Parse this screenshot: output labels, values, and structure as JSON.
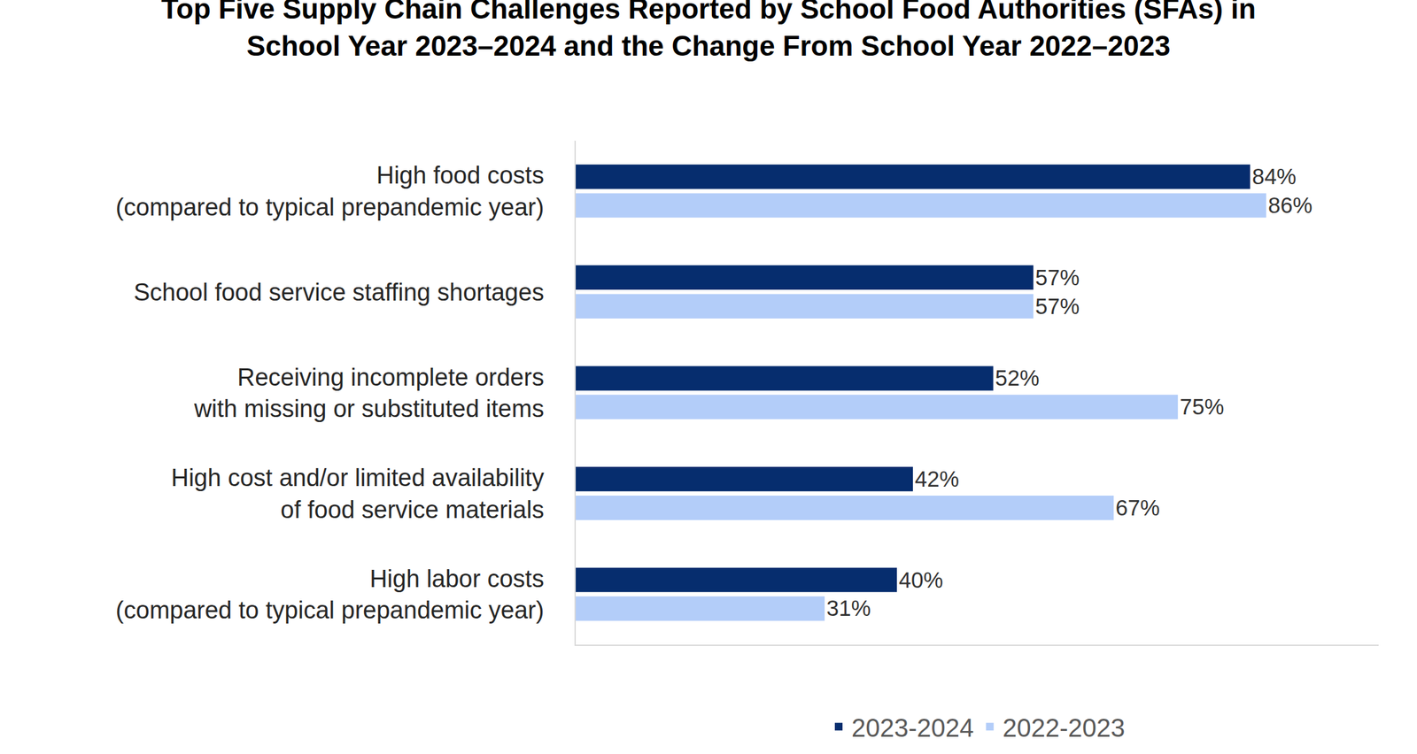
{
  "chart_data": {
    "type": "bar",
    "orientation": "horizontal",
    "title": "Top Five Supply Chain Challenges Reported by School Food Authorities (SFAs) in\nSchool Year 2023–2024 and the Change From School Year 2022–2023",
    "categories": [
      "High food costs\n(compared to typical prepandemic year)",
      "School food service staffing shortages",
      "Receiving incomplete orders\nwith missing or substituted items",
      "High cost and/or limited availability\nof food service materials",
      "High labor costs\n(compared to typical prepandemic year)"
    ],
    "series": [
      {
        "name": "2023-2024",
        "color": "#062d6e",
        "values": [
          84,
          57,
          52,
          42,
          40
        ],
        "value_labels": [
          "84%",
          "57%",
          "52%",
          "42%",
          "40%"
        ]
      },
      {
        "name": "2022-2023",
        "color": "#b3cdf9",
        "values": [
          86,
          57,
          75,
          67,
          31
        ],
        "value_labels": [
          "86%",
          "57%",
          "75%",
          "67%",
          "31%"
        ]
      }
    ],
    "xlim": [
      0,
      100
    ],
    "xticks": [],
    "grid": false,
    "legend": "bottom",
    "data_labels": true,
    "tick_labels": "y"
  }
}
